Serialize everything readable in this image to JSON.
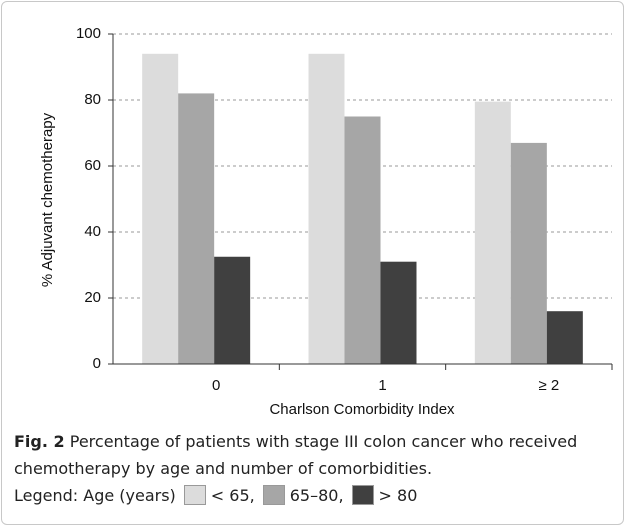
{
  "chart_data": {
    "type": "bar",
    "y_label": "% Adjuvant chemotherapy",
    "x_label": "Charlson Comorbidity Index",
    "categories": [
      "0",
      "1",
      "≥ 2"
    ],
    "legend_title": "Legend: Age (years)",
    "series": [
      {
        "name": "< 65,",
        "color": "#dcdcdc",
        "values": [
          94,
          94,
          79.5
        ]
      },
      {
        "name": "65–80,",
        "color": "#a6a6a6",
        "values": [
          82,
          75,
          67
        ]
      },
      {
        "name": "> 80",
        "color": "#404040",
        "values": [
          32.5,
          31,
          16
        ]
      }
    ],
    "ylim": [
      0,
      100
    ],
    "yticks": [
      0,
      20,
      40,
      60,
      80,
      100
    ],
    "grid": true
  },
  "caption": {
    "label": "Fig. 2",
    "text": "Percentage of patients with stage III colon cancer who received chemotherapy by age and number of comorbidities."
  }
}
